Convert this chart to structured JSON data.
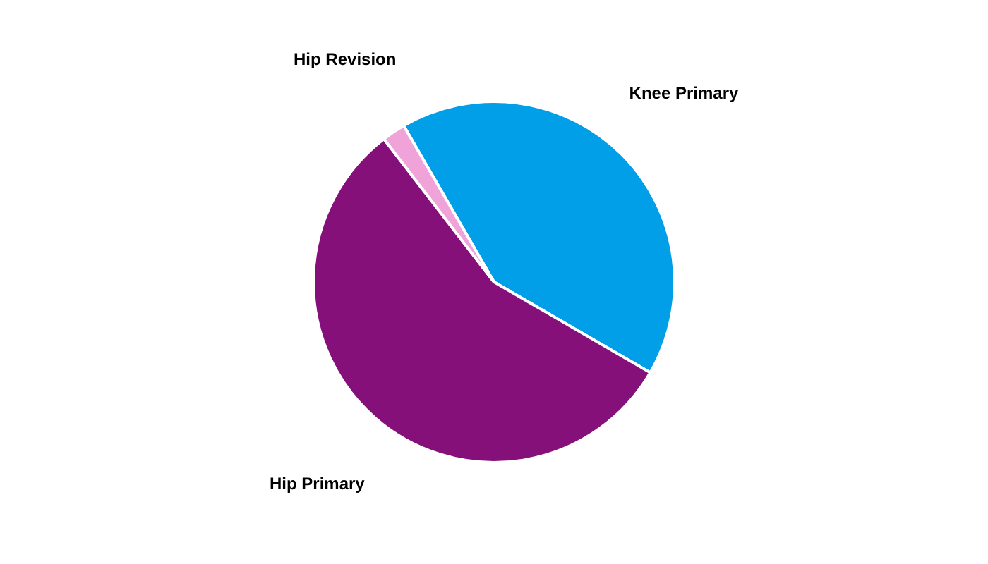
{
  "chart_data": {
    "type": "pie",
    "categories": [
      "Knee Primary",
      "Hip Primary",
      "Hip Revision"
    ],
    "values": [
      41.7,
      56.2,
      2.1
    ],
    "colors": [
      "#009fe8",
      "#85107a",
      "#f0a3d8"
    ]
  }
}
